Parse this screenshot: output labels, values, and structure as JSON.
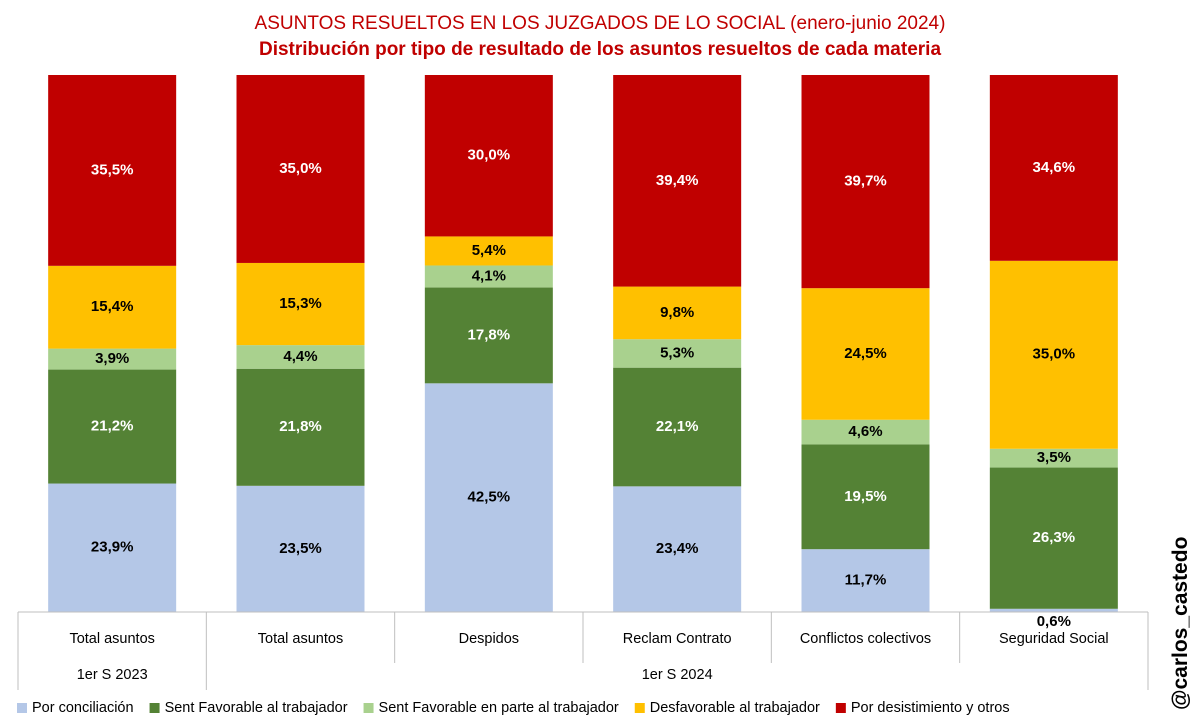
{
  "chart_data": {
    "type": "bar",
    "stacked": true,
    "percent_stacked": true,
    "title": "ASUNTOS RESUELTOS EN LOS JUZGADOS DE LO SOCIAL (enero-junio 2024)",
    "subtitle": "Distribución por tipo de resultado de los asuntos resueltos de cada materia",
    "categories": [
      "Total asuntos",
      "Total asuntos",
      "Despidos",
      "Reclam Contrato",
      "Conflictos colectivos",
      "Seguridad Social"
    ],
    "category_groups": [
      {
        "label": "1er S 2023",
        "count": 1
      },
      {
        "label": "1er S 2024",
        "count": 5
      }
    ],
    "ylim": [
      0,
      100
    ],
    "grid": false,
    "legend_position": "bottom",
    "series": [
      {
        "name": "Por conciliación",
        "color": "#b4c7e7",
        "label_color": "#000000",
        "values": [
          23.9,
          23.5,
          42.5,
          23.4,
          11.7,
          0.6
        ],
        "labels": [
          "23,9%",
          "23,5%",
          "42,5%",
          "23,4%",
          "11,7%",
          "0,6%"
        ]
      },
      {
        "name": "Sent Favorable al trabajador",
        "color": "#548235",
        "label_color": "#ffffff",
        "values": [
          21.2,
          21.8,
          17.8,
          22.1,
          19.5,
          26.3
        ],
        "labels": [
          "21,2%",
          "21,8%",
          "17,8%",
          "22,1%",
          "19,5%",
          "26,3%"
        ]
      },
      {
        "name": "Sent Favorable en parte al trabajador",
        "color": "#a9d18e",
        "label_color": "#000000",
        "values": [
          3.9,
          4.4,
          4.1,
          5.3,
          4.6,
          3.5
        ],
        "labels": [
          "3,9%",
          "4,4%",
          "4,1%",
          "5,3%",
          "4,6%",
          "3,5%"
        ]
      },
      {
        "name": "Desfavorable al trabajador",
        "color": "#ffc000",
        "label_color": "#000000",
        "values": [
          15.4,
          15.3,
          5.4,
          9.8,
          24.5,
          35.0
        ],
        "labels": [
          "15,4%",
          "15,3%",
          "5,4%",
          "9,8%",
          "24,5%",
          "35,0%"
        ]
      },
      {
        "name": "Por desistimiento y otros",
        "color": "#c00000",
        "label_color": "#ffffff",
        "values": [
          35.5,
          35.0,
          30.0,
          39.4,
          39.7,
          34.6
        ],
        "labels": [
          "35,5%",
          "35,0%",
          "30,0%",
          "39,4%",
          "39,7%",
          "34,6%"
        ]
      }
    ]
  },
  "watermark": "@carlos_castedo"
}
